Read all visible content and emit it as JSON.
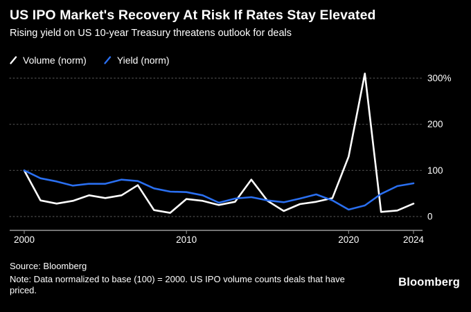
{
  "header": {
    "title": "US IPO Market's Recovery At Risk If Rates Stay Elevated",
    "subtitle": "Rising yield on US 10-year Treasury threatens outlook for deals"
  },
  "legend": [
    {
      "label": "Volume (norm)",
      "color": "#ffffff"
    },
    {
      "label": "Yield (norm)",
      "color": "#2a6ff0"
    }
  ],
  "chart_data": {
    "type": "line",
    "x": [
      2000,
      2001,
      2002,
      2003,
      2004,
      2005,
      2006,
      2007,
      2008,
      2009,
      2010,
      2011,
      2012,
      2013,
      2014,
      2015,
      2016,
      2017,
      2018,
      2019,
      2020,
      2021,
      2022,
      2023,
      2024
    ],
    "series": [
      {
        "id": "volume",
        "name": "Volume (norm)",
        "color": "#ffffff",
        "values": [
          100,
          35,
          28,
          34,
          46,
          40,
          46,
          68,
          14,
          8,
          38,
          34,
          25,
          32,
          80,
          34,
          12,
          27,
          32,
          40,
          130,
          310,
          10,
          13,
          28
        ]
      },
      {
        "id": "yield",
        "name": "Yield (norm)",
        "color": "#2a6ff0",
        "values": [
          100,
          83,
          76,
          67,
          71,
          71,
          80,
          77,
          61,
          54,
          53,
          46,
          30,
          39,
          42,
          35,
          31,
          39,
          48,
          35,
          15,
          24,
          49,
          66,
          72
        ]
      }
    ],
    "ylim": [
      0,
      310
    ],
    "yticks": [
      {
        "value": 0,
        "label": "0"
      },
      {
        "value": 100,
        "label": "100"
      },
      {
        "value": 200,
        "label": "200"
      },
      {
        "value": 300,
        "label": "300%"
      }
    ],
    "xticks": [
      {
        "value": 2000,
        "label": "2000"
      },
      {
        "value": 2010,
        "label": "2010"
      },
      {
        "value": 2020,
        "label": "2020"
      },
      {
        "value": 2024,
        "label": "2024"
      }
    ],
    "grid": "horizontal-dotted",
    "legend_position": "top-left"
  },
  "footer": {
    "source": "Source: Bloomberg",
    "note": "Note: Data normalized to base (100) = 2000. US IPO volume counts deals that have priced.",
    "brand": "Bloomberg"
  }
}
